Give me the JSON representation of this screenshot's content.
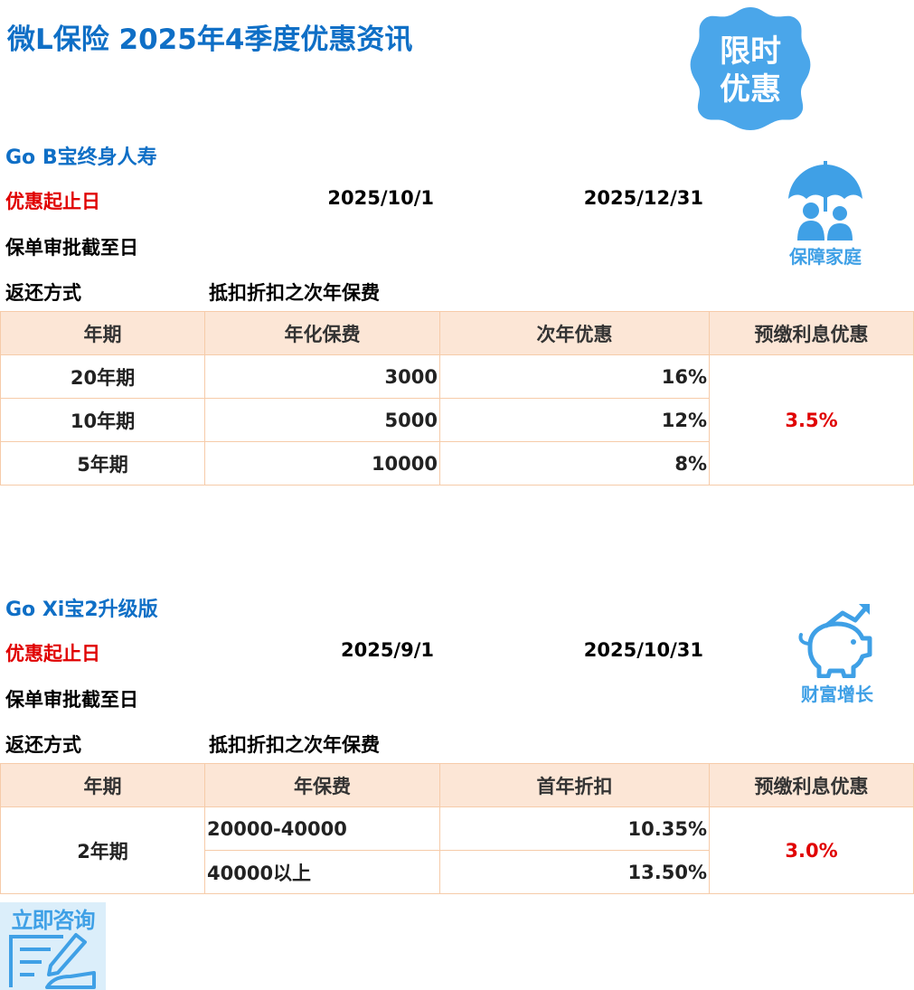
{
  "page": {
    "title": "微L保险 2025年4季度优惠资讯",
    "badge": {
      "line1": "限时",
      "line2": "优惠"
    },
    "consult_label": "立即咨询"
  },
  "products": [
    {
      "name": "Go B宝终身人寿",
      "promo_label": "优惠起止日",
      "promo_start": "2025/10/1",
      "promo_end": "2025/12/31",
      "approval_label": "保单审批截至日",
      "method_label": "返还方式",
      "method_value": "抵扣折扣之次年保费",
      "icon": {
        "name": "umbrella-family-icon",
        "caption": "保障家庭"
      },
      "table": {
        "headers": [
          "年期",
          "年化保费",
          "次年优惠",
          "预缴利息优惠"
        ],
        "rows": [
          {
            "term": "20年期",
            "premium": "3000",
            "offer": "16%"
          },
          {
            "term": "10年期",
            "premium": "5000",
            "offer": "12%"
          },
          {
            "term": "5年期",
            "premium": "10000",
            "offer": "8%"
          }
        ],
        "prepay_discount": "3.5%"
      }
    },
    {
      "name": "Go Xi宝2升级版",
      "promo_label": "优惠起止日",
      "promo_start": "2025/9/1",
      "promo_end": "2025/10/31",
      "approval_label": "保单审批截至日",
      "method_label": "返还方式",
      "method_value": "抵扣折扣之次年保费",
      "icon": {
        "name": "piggy-bank-growth-icon",
        "caption": "财富增长"
      },
      "table": {
        "headers": [
          "年期",
          "年保费",
          "首年折扣",
          "预缴利息优惠"
        ],
        "term": "2年期",
        "rows": [
          {
            "premium": "20000-40000",
            "discount": "10.35%"
          },
          {
            "premium": "40000以上",
            "discount": "13.50%"
          }
        ],
        "prepay_discount": "3.0%"
      }
    }
  ],
  "colors": {
    "title_blue": "#0f6fc6",
    "icon_blue": "#3fa0e6",
    "red": "#e00000",
    "table_border": "#f6cba9",
    "header_fill": "#fce6d6"
  }
}
